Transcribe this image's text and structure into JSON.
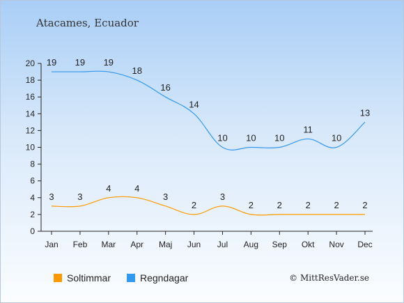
{
  "chart_data": {
    "type": "line",
    "title": "Atacames, Ecuador",
    "categories": [
      "Jan",
      "Feb",
      "Mar",
      "Apr",
      "Maj",
      "Jun",
      "Jul",
      "Aug",
      "Sep",
      "Okt",
      "Nov",
      "Dec"
    ],
    "ylim": [
      0,
      20
    ],
    "yticks": [
      0,
      2,
      4,
      6,
      8,
      10,
      12,
      14,
      16,
      18,
      20
    ],
    "grid": false,
    "legend_position": "bottom-left",
    "series": [
      {
        "name": "Soltimmar",
        "color": "#ff9900",
        "values": [
          3,
          3,
          4,
          4,
          3,
          2,
          3,
          2,
          2,
          2,
          2,
          2
        ]
      },
      {
        "name": "Regndagar",
        "color": "#3399ee",
        "values": [
          19,
          19,
          19,
          18,
          16,
          14,
          10,
          10,
          10,
          11,
          10,
          13
        ]
      }
    ]
  },
  "credit": "© MittResVader.se"
}
